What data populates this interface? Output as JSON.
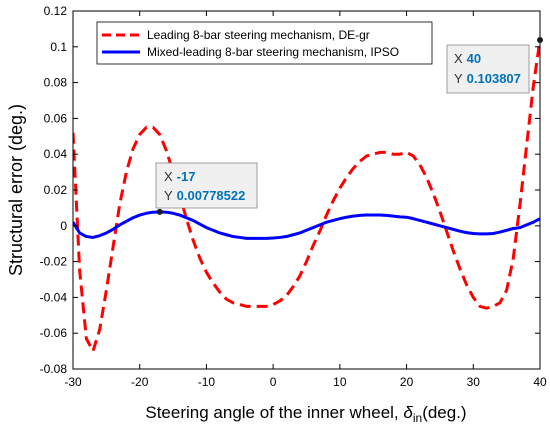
{
  "chart_data": {
    "type": "line",
    "title": "",
    "xlabel_main": "Steering angle of the inner wheel, ",
    "xlabel_symbol": "δ",
    "xlabel_sub": "in",
    "xlabel_unit": "(deg.)",
    "ylabel": "Structural error (deg.)",
    "xlim": [
      -30,
      40
    ],
    "ylim": [
      -0.08,
      0.12
    ],
    "xticks": [
      "-30",
      "-20",
      "-10",
      "0",
      "10",
      "20",
      "30",
      "40"
    ],
    "yticks": [
      "-0.08",
      "-0.06",
      "-0.04",
      "-0.02",
      "0",
      "0.02",
      "0.04",
      "0.06",
      "0.08",
      "0.1",
      "0.12"
    ],
    "grid": false,
    "legend_position": "top",
    "series": [
      {
        "name": "Leading 8-bar steering mechanism, DE-gr",
        "color": "#ff0000",
        "style": "dashed",
        "x": [
          -30,
          -29,
          -28,
          -27,
          -26,
          -25,
          -24,
          -23,
          -22,
          -21,
          -20,
          -19,
          -18,
          -17,
          -16,
          -15,
          -14,
          -13,
          -12,
          -11,
          -10,
          -9,
          -8,
          -7,
          -6,
          -5,
          -4,
          -3,
          -2,
          -1,
          0,
          1,
          2,
          3,
          4,
          5,
          6,
          7,
          8,
          9,
          10,
          11,
          12,
          13,
          14,
          15,
          16,
          17,
          18,
          19,
          20,
          21,
          22,
          23,
          24,
          25,
          26,
          27,
          28,
          29,
          30,
          31,
          32,
          33,
          34,
          35,
          36,
          37,
          38,
          39,
          40
        ],
        "y": [
          0.052,
          -0.025,
          -0.063,
          -0.07,
          -0.058,
          -0.036,
          -0.012,
          0.012,
          0.03,
          0.043,
          0.051,
          0.055,
          0.055,
          0.051,
          0.042,
          0.03,
          0.017,
          0.004,
          -0.008,
          -0.018,
          -0.026,
          -0.032,
          -0.037,
          -0.041,
          -0.043,
          -0.044,
          -0.045,
          -0.045,
          -0.045,
          -0.045,
          -0.044,
          -0.042,
          -0.039,
          -0.034,
          -0.028,
          -0.02,
          -0.011,
          -0.003,
          0.006,
          0.014,
          0.021,
          0.027,
          0.032,
          0.036,
          0.039,
          0.04,
          0.041,
          0.041,
          0.04,
          0.04,
          0.041,
          0.039,
          0.034,
          0.027,
          0.018,
          0.008,
          -0.003,
          -0.014,
          -0.024,
          -0.033,
          -0.04,
          -0.045,
          -0.046,
          -0.045,
          -0.043,
          -0.036,
          -0.018,
          0.012,
          0.045,
          0.078,
          0.104
        ]
      },
      {
        "name": "Mixed-leading 8-bar steering mechanism, IPSO",
        "color": "#0000ff",
        "style": "solid",
        "x": [
          -30,
          -29,
          -28,
          -27,
          -26,
          -25,
          -24,
          -23,
          -22,
          -21,
          -20,
          -19,
          -18,
          -17,
          -16,
          -15,
          -14,
          -13,
          -12,
          -11,
          -10,
          -9,
          -8,
          -7,
          -6,
          -5,
          -4,
          -3,
          -2,
          -1,
          0,
          1,
          2,
          3,
          4,
          5,
          6,
          7,
          8,
          9,
          10,
          11,
          12,
          13,
          14,
          15,
          16,
          17,
          18,
          19,
          20,
          21,
          22,
          23,
          24,
          25,
          26,
          27,
          28,
          29,
          30,
          31,
          32,
          33,
          34,
          35,
          36,
          37,
          38,
          39,
          40
        ],
        "y": [
          0.002,
          -0.004,
          -0.006,
          -0.0065,
          -0.0055,
          -0.004,
          -0.002,
          0.0005,
          0.0025,
          0.0045,
          0.006,
          0.007,
          0.0076,
          0.0078,
          0.0076,
          0.007,
          0.006,
          0.0045,
          0.003,
          0.001,
          -0.001,
          -0.0025,
          -0.004,
          -0.005,
          -0.006,
          -0.0065,
          -0.007,
          -0.007,
          -0.007,
          -0.007,
          -0.0068,
          -0.0065,
          -0.006,
          -0.005,
          -0.004,
          -0.0025,
          -0.001,
          0.0005,
          0.002,
          0.003,
          0.004,
          0.0048,
          0.0054,
          0.0058,
          0.006,
          0.006,
          0.006,
          0.0058,
          0.0054,
          0.005,
          0.0048,
          0.004,
          0.003,
          0.002,
          0.001,
          0,
          -0.001,
          -0.002,
          -0.003,
          -0.0038,
          -0.0043,
          -0.0045,
          -0.0045,
          -0.0043,
          -0.0035,
          -0.0025,
          -0.0015,
          -0.001,
          0.0005,
          0.002,
          0.004
        ]
      }
    ],
    "datatips": [
      {
        "x_label": "X",
        "x_value": "-17",
        "y_label": "Y",
        "y_value": "0.00778522",
        "x": -17,
        "y": 0.00778522
      },
      {
        "x_label": "X",
        "x_value": "40",
        "y_label": "Y",
        "y_value": "0.103807",
        "x": 40,
        "y": 0.103807
      }
    ]
  }
}
